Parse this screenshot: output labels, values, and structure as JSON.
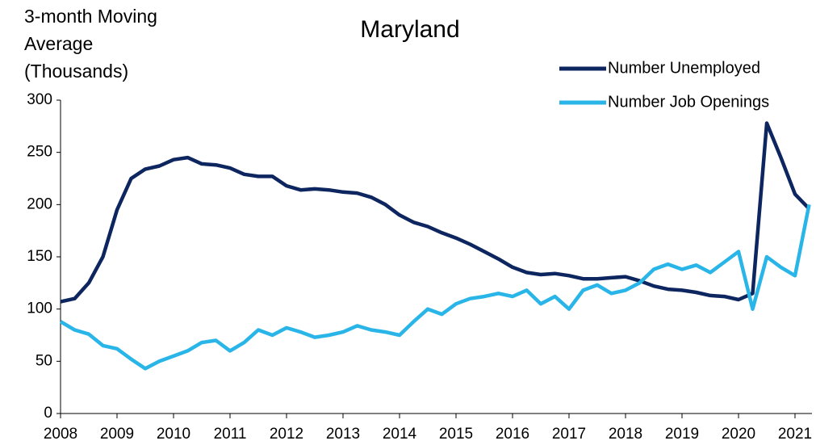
{
  "chart_data": {
    "type": "line",
    "title": "Maryland",
    "y_label": [
      "3-month Moving",
      "Average",
      "(Thousands)"
    ],
    "x": [
      2008,
      2008.25,
      2008.5,
      2008.75,
      2009,
      2009.25,
      2009.5,
      2009.75,
      2010,
      2010.25,
      2010.5,
      2010.75,
      2011,
      2011.25,
      2011.5,
      2011.75,
      2012,
      2012.25,
      2012.5,
      2012.75,
      2013,
      2013.25,
      2013.5,
      2013.75,
      2014,
      2014.25,
      2014.5,
      2014.75,
      2015,
      2015.25,
      2015.5,
      2015.75,
      2016,
      2016.25,
      2016.5,
      2016.75,
      2017,
      2017.25,
      2017.5,
      2017.75,
      2018,
      2018.25,
      2018.5,
      2018.75,
      2019,
      2019.25,
      2019.5,
      2019.75,
      2020,
      2020.25,
      2020.5,
      2020.75,
      2021,
      2021.25
    ],
    "series": [
      {
        "name": "Number Unemployed",
        "color": "#0d2660",
        "values": [
          107,
          110,
          125,
          150,
          195,
          225,
          234,
          237,
          243,
          245,
          239,
          238,
          235,
          229,
          227,
          227,
          218,
          214,
          215,
          214,
          212,
          211,
          207,
          200,
          190,
          183,
          179,
          173,
          168,
          162,
          155,
          148,
          140,
          135,
          133,
          134,
          132,
          129,
          129,
          130,
          131,
          127,
          122,
          119,
          118,
          116,
          113,
          112,
          109,
          115,
          278,
          245,
          210,
          196
        ]
      },
      {
        "name": "Number Job Openings",
        "color": "#29b5e8",
        "values": [
          88,
          80,
          76,
          65,
          62,
          52,
          43,
          50,
          55,
          60,
          68,
          70,
          60,
          68,
          80,
          75,
          82,
          78,
          73,
          75,
          78,
          84,
          80,
          78,
          75,
          88,
          100,
          95,
          105,
          110,
          112,
          115,
          112,
          118,
          105,
          112,
          100,
          118,
          123,
          115,
          118,
          125,
          138,
          143,
          138,
          142,
          135,
          145,
          155,
          100,
          150,
          140,
          132,
          200
        ]
      }
    ],
    "xlim": [
      2008,
      2021.3
    ],
    "xticks": [
      2008,
      2009,
      2010,
      2011,
      2012,
      2013,
      2014,
      2015,
      2016,
      2017,
      2018,
      2019,
      2020,
      2021
    ],
    "ylim": [
      0,
      300
    ],
    "yticks": [
      0,
      50,
      100,
      150,
      200,
      250,
      300
    ],
    "grid": false,
    "legend": "upper right"
  }
}
